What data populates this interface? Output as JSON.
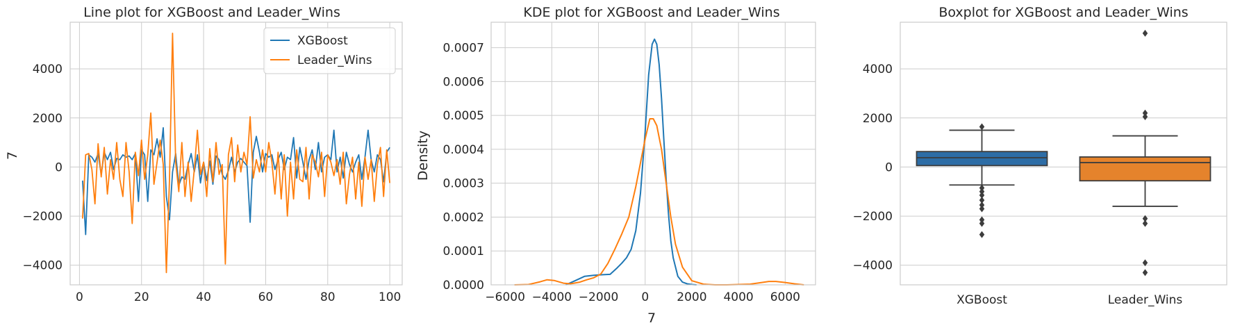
{
  "colors": {
    "xgboost": "#1f77b4",
    "leader": "#ff7f0e",
    "xgboost_box": "#2d6da6",
    "leader_box": "#e5832c"
  },
  "chart_data": [
    {
      "type": "line",
      "title": "Line plot for XGBoost and Leader_Wins",
      "xlabel": "",
      "ylabel": "7",
      "xlim": [
        -3,
        104
      ],
      "ylim": [
        -4800,
        5900
      ],
      "xticks": [
        0,
        20,
        40,
        60,
        80,
        100
      ],
      "yticks": [
        -4000,
        -2000,
        0,
        2000,
        4000
      ],
      "xtick_labels": [
        "0",
        "20",
        "40",
        "60",
        "80",
        "100"
      ],
      "ytick_labels": [
        "−4000",
        "−2000",
        "0",
        "2000",
        "4000"
      ],
      "grid": true,
      "legend": "top-right",
      "x": [
        1,
        2,
        3,
        4,
        5,
        6,
        7,
        8,
        9,
        10,
        11,
        12,
        13,
        14,
        15,
        16,
        17,
        18,
        19,
        20,
        21,
        22,
        23,
        24,
        25,
        26,
        27,
        28,
        29,
        30,
        31,
        32,
        33,
        34,
        35,
        36,
        37,
        38,
        39,
        40,
        41,
        42,
        43,
        44,
        45,
        46,
        47,
        48,
        49,
        50,
        51,
        52,
        53,
        54,
        55,
        56,
        57,
        58,
        59,
        60,
        61,
        62,
        63,
        64,
        65,
        66,
        67,
        68,
        69,
        70,
        71,
        72,
        73,
        74,
        75,
        76,
        77,
        78,
        79,
        80,
        81,
        82,
        83,
        84,
        85,
        86,
        87,
        88,
        89,
        90,
        91,
        92,
        93,
        94,
        95,
        96,
        97,
        98,
        99,
        100
      ],
      "series": [
        {
          "name": "XGBoost",
          "values": [
            -550,
            -2750,
            500,
            400,
            200,
            550,
            -300,
            600,
            300,
            600,
            -100,
            350,
            300,
            500,
            400,
            450,
            300,
            550,
            -1400,
            700,
            500,
            -1400,
            700,
            500,
            1150,
            400,
            1600,
            -1200,
            -2150,
            -200,
            550,
            -750,
            -400,
            -500,
            100,
            550,
            -200,
            500,
            -650,
            200,
            -550,
            250,
            -700,
            450,
            300,
            -300,
            -500,
            -150,
            400,
            -200,
            200,
            350,
            200,
            50,
            -2250,
            600,
            1250,
            600,
            -200,
            550,
            400,
            500,
            -100,
            300,
            600,
            -100,
            400,
            300,
            1200,
            -450,
            800,
            200,
            -500,
            300,
            700,
            -100,
            1000,
            -200,
            400,
            500,
            300,
            1500,
            -200,
            400,
            -450,
            600,
            100,
            -200,
            200,
            500,
            -500,
            400,
            1500,
            300,
            -200,
            500,
            300,
            -600,
            600,
            800
          ]
        },
        {
          "name": "Leader_Wins",
          "values": [
            -2100,
            500,
            550,
            -100,
            -1500,
            950,
            -400,
            800,
            -1100,
            300,
            -500,
            1000,
            -500,
            -1200,
            1000,
            -200,
            -2300,
            600,
            -350,
            1100,
            -500,
            500,
            2200,
            -700,
            200,
            1100,
            100,
            -4300,
            -500,
            5450,
            200,
            -1000,
            1000,
            -1200,
            200,
            -1400,
            -100,
            1500,
            -300,
            200,
            -1200,
            750,
            -600,
            1000,
            -300,
            100,
            -3950,
            500,
            1200,
            -600,
            900,
            -200,
            600,
            100,
            2050,
            -450,
            300,
            -200,
            700,
            -200,
            1000,
            200,
            -1100,
            600,
            -1300,
            500,
            -2000,
            200,
            -1300,
            700,
            -500,
            -600,
            800,
            -1300,
            500,
            200,
            -400,
            600,
            -1200,
            500,
            200,
            -350,
            300,
            -700,
            600,
            -1500,
            -300,
            400,
            -1300,
            200,
            -1600,
            400,
            -500,
            300,
            -1400,
            100,
            800,
            -1200,
            700,
            -650
          ]
        }
      ]
    },
    {
      "type": "line",
      "title": "KDE plot for XGBoost and Leader_Wins",
      "xlabel": "7",
      "ylabel": "Density",
      "xlim": [
        -6600,
        7300
      ],
      "ylim": [
        0,
        0.000775
      ],
      "xticks": [
        -6000,
        -4000,
        -2000,
        0,
        2000,
        4000,
        6000
      ],
      "yticks": [
        0,
        0.0001,
        0.0002,
        0.0003,
        0.0004,
        0.0005,
        0.0006,
        0.0007
      ],
      "xtick_labels": [
        "−6000",
        "−4000",
        "−2000",
        "0",
        "2000",
        "4000",
        "6000"
      ],
      "ytick_labels": [
        "0.0000",
        "0.0001",
        "0.0002",
        "0.0003",
        "0.0004",
        "0.0005",
        "0.0006",
        "0.0007"
      ],
      "grid": true,
      "series": [
        {
          "name": "XGBoost",
          "x": [
            -3400,
            -3000,
            -2600,
            -2200,
            -1800,
            -1500,
            -1200,
            -1000,
            -800,
            -600,
            -400,
            -200,
            0,
            150,
            300,
            400,
            500,
            600,
            700,
            800,
            900,
            1000,
            1100,
            1200,
            1400,
            1600,
            1800,
            2000,
            2200
          ],
          "values": [
            0,
            1.2e-05,
            2.5e-05,
            2.8e-05,
            3e-05,
            3.1e-05,
            5e-05,
            6.4e-05,
            8e-05,
            0.000105,
            0.00016,
            0.00027,
            0.00045,
            0.00062,
            0.00071,
            0.000725,
            0.00071,
            0.00065,
            0.00055,
            0.00043,
            0.00031,
            0.00021,
            0.00013,
            8e-05,
            2.5e-05,
            8e-06,
            3e-06,
            1e-06,
            0
          ]
        },
        {
          "name": "Leader_Wins",
          "x": [
            -5600,
            -5000,
            -4500,
            -4200,
            -3900,
            -3500,
            -3200,
            -2800,
            -2500,
            -2200,
            -1900,
            -1600,
            -1300,
            -1000,
            -700,
            -400,
            -200,
            0,
            200,
            350,
            500,
            700,
            900,
            1100,
            1300,
            1600,
            2000,
            2500,
            3000,
            3500,
            4000,
            4500,
            5000,
            5300,
            5600,
            6000,
            6400,
            6800
          ],
          "values": [
            0,
            1e-06,
            9e-06,
            1.5e-05,
            1.3e-05,
            5e-06,
            3e-06,
            8e-06,
            1.5e-05,
            2.1e-05,
            3.2e-05,
            6.3e-05,
            0.000105,
            0.00015,
            0.0002,
            0.00029,
            0.00036,
            0.00043,
            0.00049,
            0.00049,
            0.00047,
            0.0004,
            0.0003,
            0.0002,
            0.00012,
            5.2e-05,
            1.2e-05,
            2e-06,
            0,
            0,
            1e-06,
            2e-06,
            7e-06,
            1e-05,
            1e-05,
            7e-06,
            3e-06,
            0
          ]
        }
      ]
    },
    {
      "type": "box",
      "title": "Boxplot for XGBoost and Leader_Wins",
      "xlabel": "",
      "ylabel": "",
      "ylim": [
        -4800,
        5900
      ],
      "yticks": [
        -4000,
        -2000,
        0,
        2000,
        4000
      ],
      "ytick_labels": [
        "−4000",
        "−2000",
        "0",
        "2000",
        "4000"
      ],
      "categories": [
        "XGBoost",
        "Leader_Wins"
      ],
      "grid": true,
      "boxes": [
        {
          "name": "XGBoost",
          "whisker_low": -730,
          "q1": 60,
          "median": 380,
          "q3": 630,
          "whisker_high": 1500,
          "outliers": [
            1640,
            -850,
            -1000,
            -1150,
            -1350,
            -1550,
            -1700,
            -2150,
            -2300,
            -2750
          ]
        },
        {
          "name": "Leader_Wins",
          "whisker_low": -1600,
          "q1": -560,
          "median": 180,
          "q3": 410,
          "whisker_high": 1270,
          "outliers": [
            5450,
            2200,
            2050,
            -2100,
            -2300,
            -3900,
            -4300
          ]
        }
      ]
    }
  ]
}
